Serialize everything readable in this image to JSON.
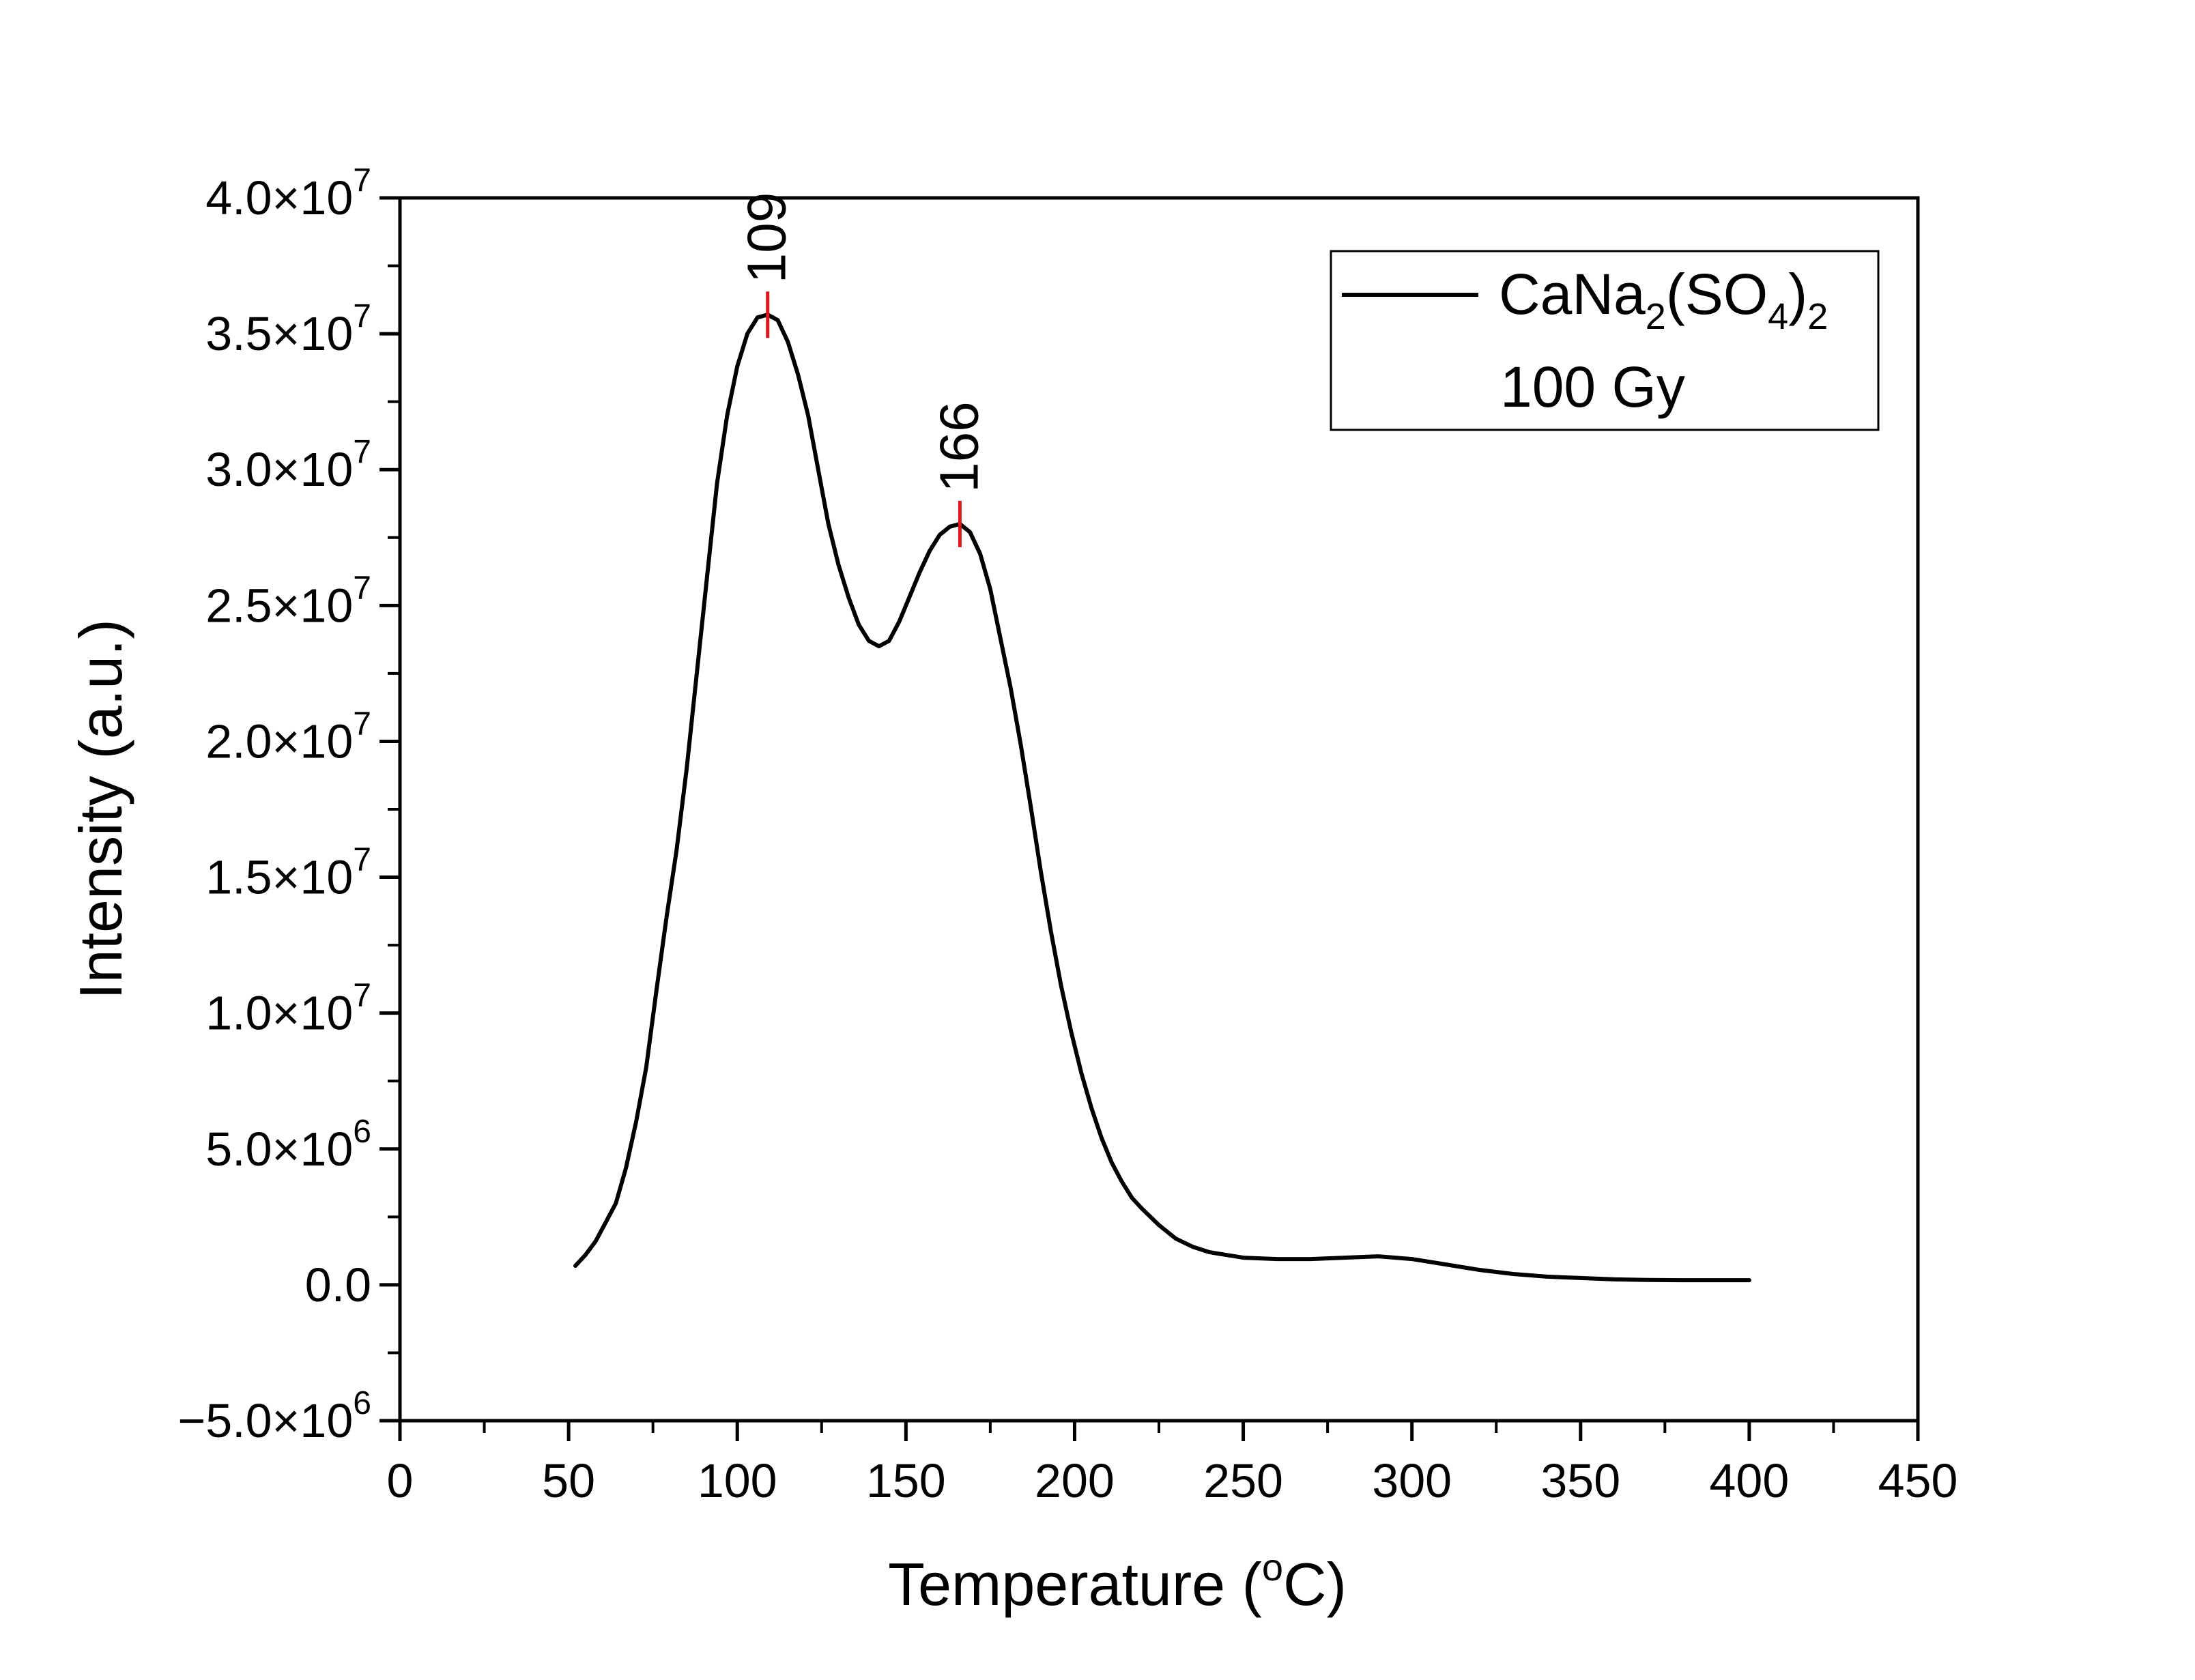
{
  "chart_data": {
    "type": "line",
    "xlabel": "Temperature (",
    "xlabel_unit_sup": "o",
    "xlabel_unit": "C)",
    "ylabel": "Intensity (a.u.)",
    "xlim": [
      0,
      450
    ],
    "ylim": [
      -5000000,
      40000000
    ],
    "grid": false,
    "x_ticks": [
      0,
      50,
      100,
      150,
      200,
      250,
      300,
      350,
      400,
      450
    ],
    "x_tick_labels": [
      "0",
      "50",
      "100",
      "150",
      "200",
      "250",
      "300",
      "350",
      "400",
      "450"
    ],
    "y_ticks": [
      {
        "value": -5000000,
        "mantissa": "−5.0×10",
        "exp": "6"
      },
      {
        "value": 0,
        "mantissa": "0.0",
        "exp": ""
      },
      {
        "value": 5000000,
        "mantissa": "5.0×10",
        "exp": "6"
      },
      {
        "value": 10000000,
        "mantissa": "1.0×10",
        "exp": "7"
      },
      {
        "value": 15000000,
        "mantissa": "1.5×10",
        "exp": "7"
      },
      {
        "value": 20000000,
        "mantissa": "2.0×10",
        "exp": "7"
      },
      {
        "value": 25000000,
        "mantissa": "2.5×10",
        "exp": "7"
      },
      {
        "value": 30000000,
        "mantissa": "3.0×10",
        "exp": "7"
      },
      {
        "value": 35000000,
        "mantissa": "3.5×10",
        "exp": "7"
      },
      {
        "value": 40000000,
        "mantissa": "4.0×10",
        "exp": "7"
      }
    ],
    "legend": {
      "placement": "top-right",
      "series_name_parts": [
        "CaNa",
        "2",
        "(SO",
        "4",
        ")",
        "2"
      ],
      "subtitle": "100 Gy"
    },
    "series": [
      {
        "color": "#000000",
        "x": [
          52,
          55,
          58,
          61,
          64,
          67,
          70,
          73,
          76,
          79,
          82,
          85,
          88,
          91,
          94,
          97,
          100,
          103,
          106,
          109,
          112,
          115,
          118,
          121,
          124,
          127,
          130,
          133,
          136,
          139,
          142,
          145,
          148,
          151,
          154,
          157,
          160,
          163,
          166,
          169,
          172,
          175,
          178,
          181,
          184,
          187,
          190,
          193,
          196,
          199,
          202,
          205,
          208,
          211,
          214,
          217,
          220,
          225,
          230,
          235,
          240,
          250,
          260,
          270,
          280,
          290,
          300,
          310,
          320,
          330,
          340,
          350,
          360,
          370,
          380,
          390,
          400
        ],
        "y": [
          700000,
          1100000,
          1600000,
          2300000,
          3000000,
          4300000,
          6000000,
          8000000,
          10800000,
          13500000,
          16000000,
          19000000,
          22500000,
          26000000,
          29500000,
          32000000,
          33800000,
          35000000,
          35600000,
          35700000,
          35500000,
          34700000,
          33500000,
          32000000,
          30000000,
          28000000,
          26500000,
          25300000,
          24300000,
          23700000,
          23500000,
          23700000,
          24400000,
          25300000,
          26200000,
          27000000,
          27600000,
          27900000,
          28000000,
          27700000,
          26900000,
          25600000,
          23800000,
          22000000,
          19900000,
          17600000,
          15200000,
          13000000,
          11000000,
          9300000,
          7800000,
          6500000,
          5400000,
          4500000,
          3800000,
          3200000,
          2800000,
          2200000,
          1700000,
          1400000,
          1200000,
          1000000,
          950000,
          950000,
          1000000,
          1050000,
          950000,
          750000,
          550000,
          400000,
          300000,
          250000,
          200000,
          180000,
          170000,
          170000,
          170000
        ]
      }
    ],
    "annotations": [
      {
        "label": "109",
        "x": 109,
        "y": 35700000,
        "color": "#e0161b"
      },
      {
        "label": "166",
        "x": 166,
        "y": 28000000,
        "color": "#e0161b"
      }
    ]
  }
}
